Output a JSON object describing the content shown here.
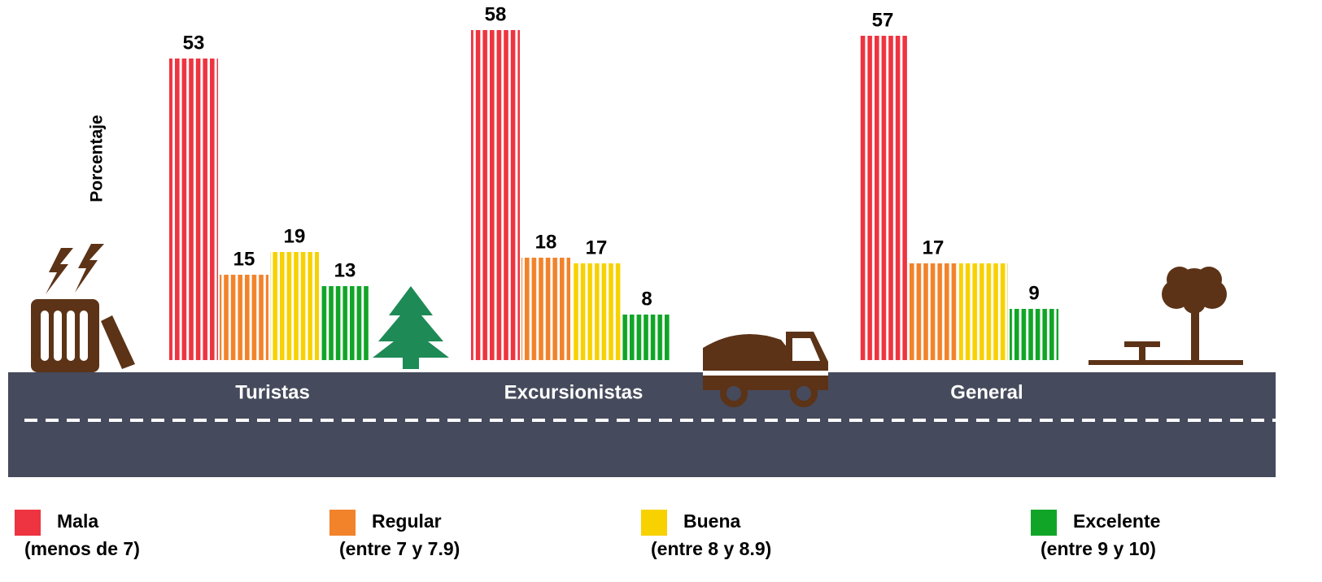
{
  "chart_data": {
    "type": "bar",
    "y_label": "Porcentaje",
    "categories": [
      "Turistas",
      "Excursionistas",
      "General"
    ],
    "ylim": [
      0,
      63
    ],
    "series": [
      {
        "name": "Mala",
        "description": "(menos de 7)",
        "color": "#ee3440",
        "values": [
          53,
          58,
          57
        ]
      },
      {
        "name": "Regular",
        "description": "(entre 7 y 7.9)",
        "color": "#f2832b",
        "values": [
          15,
          18,
          17
        ]
      },
      {
        "name": "Buena",
        "description": "(entre 8 y 8.9)",
        "color": "#f7d100",
        "values": [
          19,
          17,
          17
        ],
        "value_labels": [
          "19",
          "17",
          null
        ]
      },
      {
        "name": "Excelente",
        "description": "(entre 9 y 10)",
        "color": "#11a528",
        "values": [
          13,
          8,
          9
        ]
      }
    ]
  }
}
